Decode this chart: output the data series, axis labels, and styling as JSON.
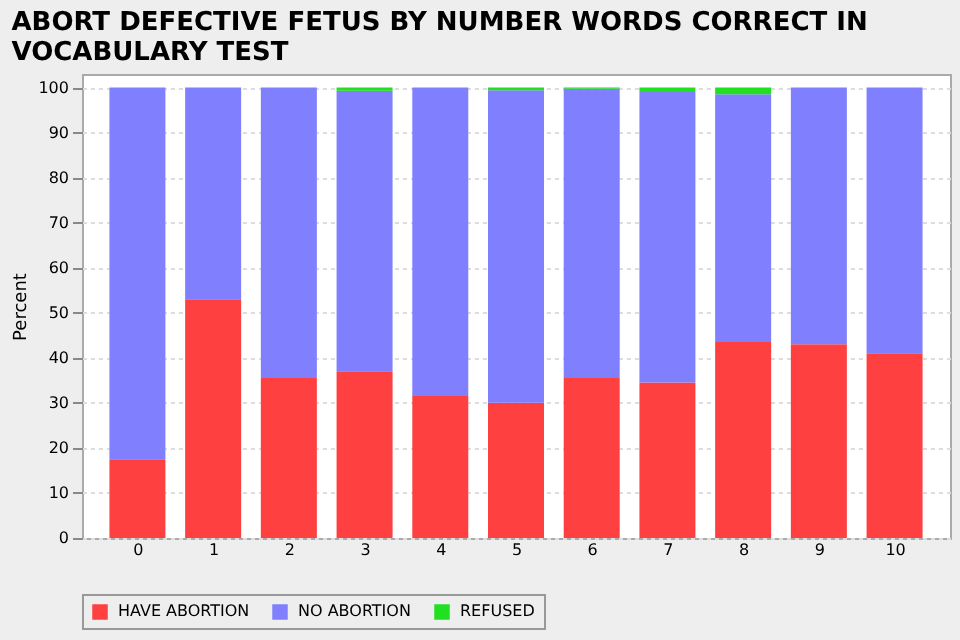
{
  "chart_data": {
    "type": "bar",
    "stacked": true,
    "title": [
      "ABORT DEFECTIVE FETUS BY NUMBER WORDS CORRECT IN",
      "VOCABULARY TEST"
    ],
    "ylabel": "Percent",
    "categories": [
      "0",
      "1",
      "2",
      "3",
      "4",
      "5",
      "6",
      "7",
      "8",
      "9",
      "10"
    ],
    "series": [
      {
        "name": "HAVE ABORTION",
        "color": "#ff4040",
        "values": [
          17.5,
          53,
          35.5,
          37,
          31.5,
          30,
          35.5,
          34.5,
          43.5,
          43,
          41
        ]
      },
      {
        "name": "NO ABORTION",
        "color": "#8080ff",
        "values": [
          82.5,
          47,
          64.5,
          62.3,
          68.5,
          69.4,
          64.2,
          64.5,
          55,
          57,
          59
        ]
      },
      {
        "name": "REFUSED",
        "color": "#20e020",
        "values": [
          0,
          0,
          0,
          0.7,
          0,
          0.6,
          0.3,
          1,
          1.5,
          0,
          0
        ]
      }
    ],
    "ylim": [
      0,
      103
    ],
    "yticks": [
      0,
      10,
      20,
      30,
      40,
      50,
      60,
      70,
      80,
      90,
      100
    ],
    "grid": "y",
    "legend": "bottom"
  }
}
